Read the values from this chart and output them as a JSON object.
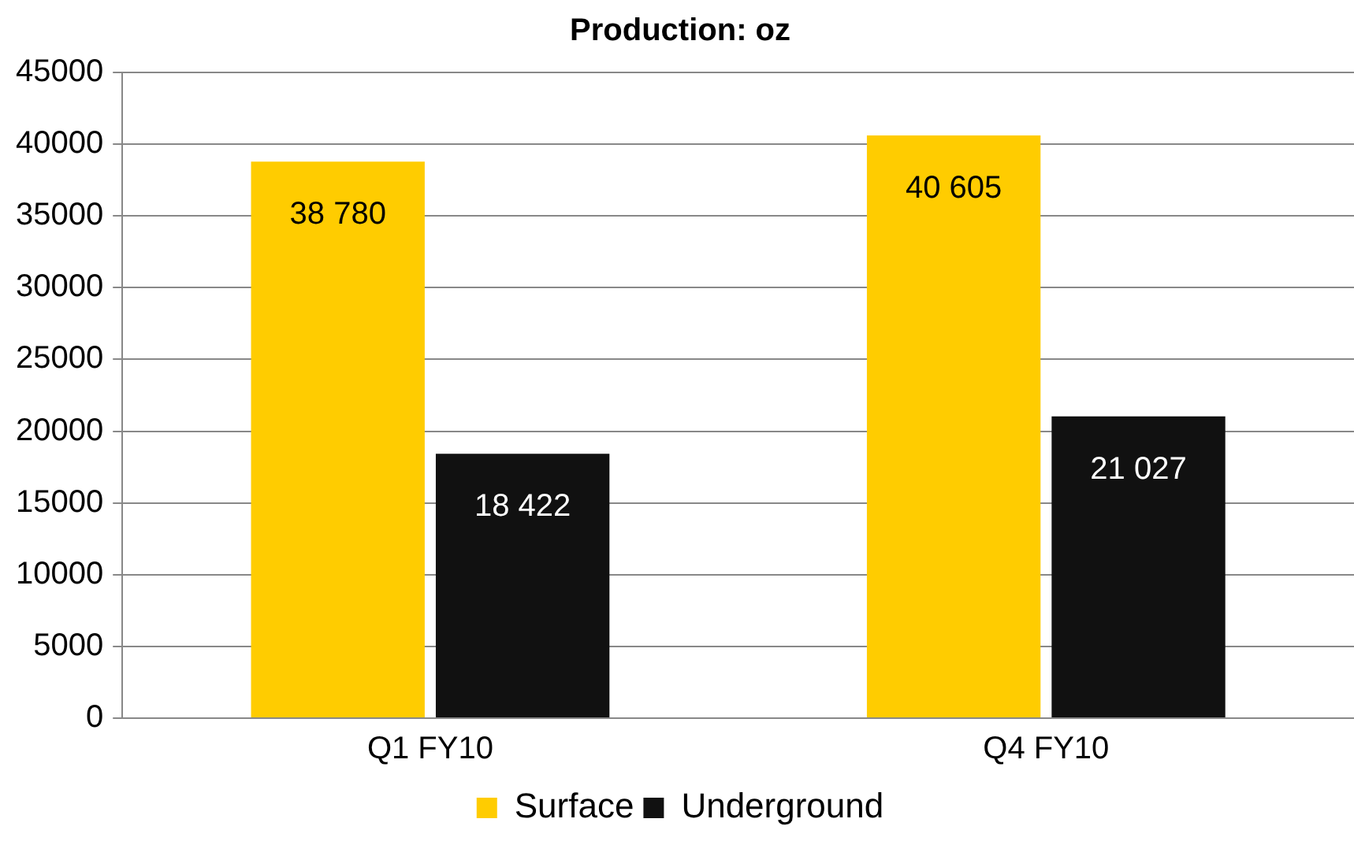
{
  "chart_data": {
    "type": "bar",
    "title": "Production: oz",
    "categories": [
      "Q1 FY10",
      "Q4 FY10"
    ],
    "series": [
      {
        "name": "Surface",
        "color": "#ffcc00",
        "values": [
          38780,
          40605
        ],
        "value_labels": [
          "38 780",
          "40 605"
        ]
      },
      {
        "name": "Underground",
        "color": "#111111",
        "values": [
          18422,
          21027
        ],
        "value_labels": [
          "18 422",
          "21 027"
        ]
      }
    ],
    "ylim": [
      0,
      45000
    ],
    "yticks": [
      0,
      5000,
      10000,
      15000,
      20000,
      25000,
      30000,
      35000,
      40000,
      45000
    ],
    "grid": "y",
    "legend": "bottom"
  }
}
